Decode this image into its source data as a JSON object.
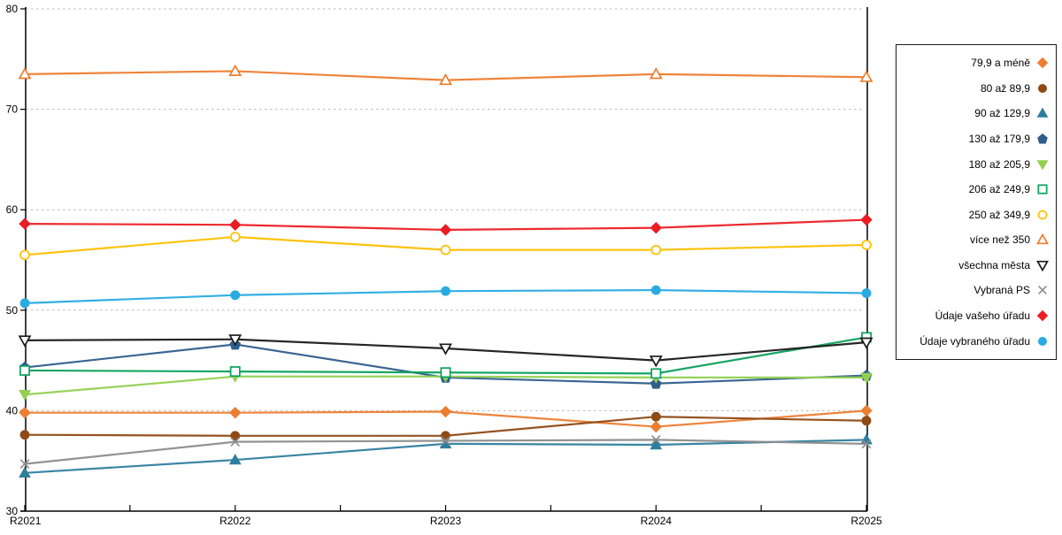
{
  "chart_data": {
    "type": "line",
    "x": [
      "R2021",
      "R2022",
      "R2023",
      "R2024",
      "R2025"
    ],
    "ylim": [
      30,
      80
    ],
    "y_ticks": [
      30,
      40,
      50,
      60,
      70,
      80
    ],
    "grid": "horizontal dashed gridlines at 40,50,60,70,80",
    "legend_position": "right",
    "axis_color": "#000000",
    "gridline_color": "#b8b8b8",
    "series": [
      {
        "name": "79,9 a méně",
        "marker": "diamond",
        "style": "filled",
        "color": "#ED7D31",
        "values": [
          39.8,
          39.8,
          39.9,
          38.4,
          40.0
        ]
      },
      {
        "name": "80 až 89,9",
        "marker": "circle",
        "style": "filled",
        "color": "#8F4A15",
        "values": [
          37.6,
          37.5,
          37.5,
          39.4,
          39.0
        ]
      },
      {
        "name": "90 až 129,9",
        "marker": "triangle-up",
        "style": "filled",
        "color": "#2E7E9E",
        "values": [
          33.8,
          35.1,
          36.7,
          36.6,
          37.1
        ]
      },
      {
        "name": "130 až 179,9",
        "marker": "pentagon",
        "style": "filled",
        "color": "#2F5D8C",
        "values": [
          44.3,
          46.6,
          43.3,
          42.7,
          43.5
        ]
      },
      {
        "name": "180 až 205,9",
        "marker": "triangle-down",
        "style": "filled",
        "color": "#92D050",
        "values": [
          41.6,
          43.4,
          43.4,
          43.3,
          43.3
        ]
      },
      {
        "name": "206 až 249,9",
        "marker": "square",
        "style": "open",
        "color": "#0AA15B",
        "values": [
          44.0,
          43.9,
          43.8,
          43.7,
          47.3
        ]
      },
      {
        "name": "250 až 349,9",
        "marker": "circle",
        "style": "open",
        "color": "#FFC000",
        "values": [
          55.5,
          57.3,
          56.0,
          56.0,
          56.5
        ]
      },
      {
        "name": "více než 350",
        "marker": "triangle-up",
        "style": "open",
        "color": "#ED7D31",
        "values": [
          73.5,
          73.8,
          72.9,
          73.5,
          73.2
        ]
      },
      {
        "name": "všechna města",
        "marker": "triangle-down",
        "style": "open",
        "color": "#1A1A1A",
        "values": [
          47.0,
          47.1,
          46.2,
          45.0,
          46.8
        ]
      },
      {
        "name": "Vybraná PS",
        "marker": "x",
        "style": "open",
        "color": "#8C8C8C",
        "values": [
          34.7,
          36.9,
          37.0,
          37.1,
          36.7
        ]
      },
      {
        "name": "Údaje vašeho úřadu",
        "marker": "diamond",
        "style": "filled",
        "color": "#EC1C24",
        "values": [
          58.6,
          58.5,
          58.0,
          58.2,
          59.0
        ]
      },
      {
        "name": "Údaje vybraného úřadu",
        "marker": "circle",
        "style": "filled",
        "color": "#29ABE2",
        "values": [
          50.7,
          51.5,
          51.9,
          52.0,
          51.7
        ]
      }
    ]
  }
}
